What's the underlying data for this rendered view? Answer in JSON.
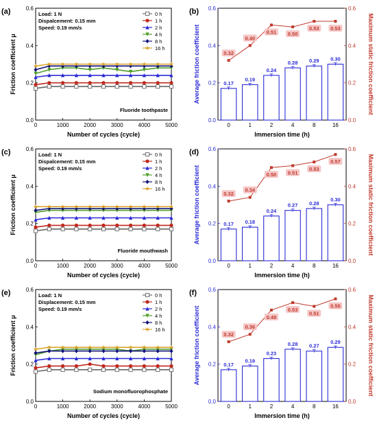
{
  "figure": {
    "colors": {
      "bar": "#2b2bd6",
      "static": "#c0392b",
      "label_bg": "#f6c7c7",
      "grid": "#000000"
    },
    "line_colors": [
      "#666666",
      "#c0281c",
      "#2b2bd6",
      "#4f9e2a",
      "#12127a",
      "#d9a32b"
    ],
    "line_markers": [
      "square-open",
      "circle",
      "triangle-up",
      "triangle-down",
      "diamond",
      "star"
    ]
  },
  "chart_data": [
    {
      "panel": "(a)",
      "type": "line",
      "xlabel": "Number of cycles (cycle)",
      "ylabel": "Friction coefficient μ",
      "xlim": [
        0,
        5000
      ],
      "ylim": [
        0,
        0.6
      ],
      "xticks": [
        "0",
        "1000",
        "2000",
        "3000",
        "4000",
        "5000"
      ],
      "yticks": [
        "0.0",
        "0.2",
        "0.4",
        "0.6"
      ],
      "annotations": [
        "Load: 1 N",
        "Dispalcement: 0.15 mm",
        "Speed: 0.19 mm/s"
      ],
      "label": "Fluoride toothpaste",
      "series": [
        {
          "name": "0 h",
          "values": [
            0.17,
            0.18,
            0.18,
            0.18,
            0.18,
            0.18,
            0.18,
            0.18,
            0.18,
            0.18,
            0.18
          ]
        },
        {
          "name": "1 h",
          "values": [
            0.19,
            0.2,
            0.2,
            0.2,
            0.2,
            0.2,
            0.2,
            0.2,
            0.2,
            0.2,
            0.2
          ]
        },
        {
          "name": "2 h",
          "values": [
            0.23,
            0.24,
            0.24,
            0.24,
            0.24,
            0.24,
            0.24,
            0.24,
            0.24,
            0.24,
            0.24
          ]
        },
        {
          "name": "4 h",
          "values": [
            0.25,
            0.27,
            0.28,
            0.28,
            0.27,
            0.28,
            0.27,
            0.26,
            0.27,
            0.28,
            0.28
          ]
        },
        {
          "name": "8 h",
          "values": [
            0.27,
            0.29,
            0.29,
            0.29,
            0.29,
            0.29,
            0.29,
            0.29,
            0.29,
            0.29,
            0.29
          ]
        },
        {
          "name": "16 h",
          "values": [
            0.29,
            0.3,
            0.3,
            0.3,
            0.3,
            0.3,
            0.3,
            0.3,
            0.3,
            0.3,
            0.3
          ]
        }
      ]
    },
    {
      "panel": "(b)",
      "type": "bar",
      "xlabel": "Immersion time (h)",
      "ylabel": "Average friction coefficient",
      "ylabel2": "Maximum static friction coefficient",
      "categories": [
        "0",
        "1",
        "2",
        "4",
        "8",
        "16"
      ],
      "ylim": [
        0,
        0.6
      ],
      "yticks": [
        "0.0",
        "0.2",
        "0.4",
        "0.6"
      ],
      "bar_values": [
        0.17,
        0.19,
        0.24,
        0.28,
        0.29,
        0.3
      ],
      "bar_labels": [
        "0.17",
        "0.19",
        "0.24",
        "0.28",
        "0.29",
        "0.30"
      ],
      "static_values": [
        0.32,
        0.4,
        0.51,
        0.5,
        0.53,
        0.53
      ],
      "static_labels": [
        "0.32",
        "0.40",
        "0.51",
        "0.50",
        "0.53",
        "0.53"
      ]
    },
    {
      "panel": "(c)",
      "type": "line",
      "xlabel": "Number of cycles (cycle)",
      "ylabel": "Friction coefficient μ",
      "xlim": [
        0,
        5000
      ],
      "ylim": [
        0,
        0.6
      ],
      "xticks": [
        "0",
        "1000",
        "2000",
        "3000",
        "4000",
        "5000"
      ],
      "yticks": [
        "0.0",
        "0.2",
        "0.4",
        "0.6"
      ],
      "annotations": [
        "Load: 1 N",
        "Dispalcement: 0.15 mm",
        "Speed: 0.19 mm/s"
      ],
      "label": "Fluoride mouthwash",
      "series": [
        {
          "name": "0 h",
          "values": [
            0.16,
            0.17,
            0.17,
            0.17,
            0.17,
            0.17,
            0.17,
            0.17,
            0.17,
            0.17,
            0.17
          ]
        },
        {
          "name": "1 h",
          "values": [
            0.18,
            0.19,
            0.19,
            0.19,
            0.19,
            0.19,
            0.19,
            0.19,
            0.19,
            0.19,
            0.19
          ]
        },
        {
          "name": "2 h",
          "values": [
            0.22,
            0.23,
            0.23,
            0.23,
            0.23,
            0.23,
            0.23,
            0.23,
            0.23,
            0.23,
            0.23
          ]
        },
        {
          "name": "4 h",
          "values": [
            0.26,
            0.27,
            0.27,
            0.27,
            0.27,
            0.27,
            0.27,
            0.27,
            0.27,
            0.27,
            0.27
          ]
        },
        {
          "name": "8 h",
          "values": [
            0.27,
            0.28,
            0.28,
            0.28,
            0.28,
            0.28,
            0.28,
            0.28,
            0.28,
            0.28,
            0.28
          ]
        },
        {
          "name": "16 h",
          "values": [
            0.29,
            0.29,
            0.29,
            0.29,
            0.29,
            0.29,
            0.29,
            0.29,
            0.29,
            0.29,
            0.29
          ]
        }
      ]
    },
    {
      "panel": "(d)",
      "type": "bar",
      "xlabel": "Immersion time (h)",
      "ylabel": "Average friction coefficient",
      "ylabel2": "Maximum static friction coefficient",
      "categories": [
        "0",
        "1",
        "2",
        "4",
        "8",
        "16"
      ],
      "ylim": [
        0,
        0.6
      ],
      "yticks": [
        "0.0",
        "0.2",
        "0.4",
        "0.6"
      ],
      "bar_values": [
        0.17,
        0.18,
        0.24,
        0.27,
        0.28,
        0.3
      ],
      "bar_labels": [
        "0.17",
        "0.18",
        "0.24",
        "0.27",
        "0.28",
        "0.30"
      ],
      "static_values": [
        0.32,
        0.34,
        0.5,
        0.51,
        0.53,
        0.57
      ],
      "static_labels": [
        "0.32",
        "0.34",
        "0.50",
        "0.51",
        "0.53",
        "0.57"
      ]
    },
    {
      "panel": "(e)",
      "type": "line",
      "xlabel": "Number of cycles (cycle)",
      "ylabel": "Friction coefficient μ",
      "xlim": [
        0,
        5000
      ],
      "ylim": [
        0,
        0.6
      ],
      "xticks": [
        "0",
        "1000",
        "2000",
        "3000",
        "4000",
        "5000"
      ],
      "yticks": [
        "0.0",
        "0.2",
        "0.4",
        "0.6"
      ],
      "annotations": [
        "Load: 1 N",
        "Displacement: 0.15 mm",
        "Speed: 0.19 mm/s"
      ],
      "label": "Sodium monofluorophosphate",
      "series": [
        {
          "name": "0 h",
          "values": [
            0.16,
            0.17,
            0.17,
            0.17,
            0.17,
            0.17,
            0.17,
            0.17,
            0.17,
            0.17,
            0.17
          ]
        },
        {
          "name": "1 h",
          "values": [
            0.18,
            0.19,
            0.19,
            0.19,
            0.2,
            0.19,
            0.19,
            0.19,
            0.19,
            0.19,
            0.19
          ]
        },
        {
          "name": "2 h",
          "values": [
            0.22,
            0.23,
            0.23,
            0.23,
            0.23,
            0.23,
            0.23,
            0.23,
            0.23,
            0.23,
            0.23
          ]
        },
        {
          "name": "4 h",
          "values": [
            0.25,
            0.27,
            0.28,
            0.28,
            0.28,
            0.28,
            0.28,
            0.27,
            0.28,
            0.28,
            0.28
          ]
        },
        {
          "name": "8 h",
          "values": [
            0.26,
            0.27,
            0.27,
            0.27,
            0.27,
            0.27,
            0.27,
            0.27,
            0.27,
            0.27,
            0.27
          ]
        },
        {
          "name": "16 h",
          "values": [
            0.28,
            0.29,
            0.29,
            0.29,
            0.29,
            0.29,
            0.29,
            0.29,
            0.29,
            0.29,
            0.29
          ]
        }
      ]
    },
    {
      "panel": "(f)",
      "type": "bar",
      "xlabel": "Immersion time (h)",
      "ylabel": "Average friction coefficient",
      "ylabel2": "Maximum static friction coefficient",
      "categories": [
        "0",
        "1",
        "2",
        "4",
        "8",
        "16"
      ],
      "ylim": [
        0,
        0.6
      ],
      "yticks": [
        "0.0",
        "0.2",
        "0.4",
        "0.6"
      ],
      "bar_values": [
        0.17,
        0.19,
        0.23,
        0.28,
        0.27,
        0.29
      ],
      "bar_labels": [
        "0.17",
        "0.19",
        "0.23",
        "0.28",
        "0.27",
        "0.29"
      ],
      "static_values": [
        0.32,
        0.36,
        0.49,
        0.53,
        0.51,
        0.55
      ],
      "static_labels": [
        "0.32",
        "0.36",
        "0.49",
        "0.53",
        "0.51",
        "0.55"
      ]
    }
  ]
}
